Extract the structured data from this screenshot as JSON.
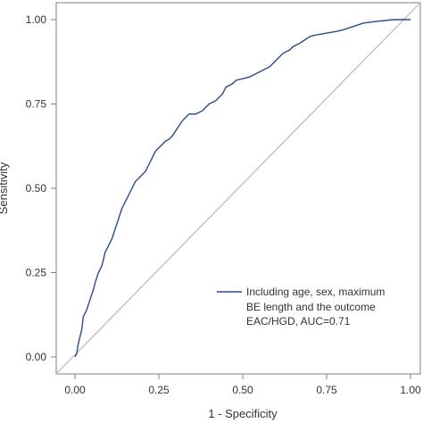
{
  "chart_data": {
    "type": "line",
    "xlabel": "1 - Specificity",
    "ylabel": "Sensitivity",
    "xlim": [
      0,
      1
    ],
    "ylim": [
      0,
      1
    ],
    "x_ticks": [
      "0.00",
      "0.25",
      "0.50",
      "0.75",
      "1.00"
    ],
    "y_ticks": [
      "0.00",
      "0.25",
      "0.50",
      "0.75",
      "1.00"
    ],
    "grid": false,
    "legend_position": "bottom-right",
    "colors": {
      "roc": "#2a4a8c",
      "reference": "#b8b8b8",
      "axis": "#7f7f7f"
    },
    "reference_line": {
      "x": [
        0,
        1
      ],
      "y": [
        0,
        1
      ]
    },
    "series": [
      {
        "name": "Including age, sex, maximum BE length and the outcome EAC/HGD, AUC=0.71",
        "legend_lines": [
          "Including age, sex, maximum",
          "BE length and the outcome",
          "EAC/HGD, AUC=0.71"
        ],
        "x": [
          0,
          0.005,
          0.01,
          0.02,
          0.025,
          0.03,
          0.035,
          0.045,
          0.055,
          0.06,
          0.07,
          0.08,
          0.085,
          0.09,
          0.1,
          0.11,
          0.12,
          0.13,
          0.14,
          0.15,
          0.16,
          0.17,
          0.18,
          0.19,
          0.2,
          0.21,
          0.22,
          0.23,
          0.24,
          0.25,
          0.26,
          0.27,
          0.28,
          0.29,
          0.3,
          0.32,
          0.34,
          0.36,
          0.37,
          0.38,
          0.39,
          0.4,
          0.42,
          0.44,
          0.45,
          0.47,
          0.48,
          0.5,
          0.52,
          0.54,
          0.55,
          0.57,
          0.58,
          0.6,
          0.62,
          0.64,
          0.65,
          0.67,
          0.7,
          0.72,
          0.75,
          0.78,
          0.8,
          0.83,
          0.86,
          0.9,
          0.95,
          1.0
        ],
        "y": [
          0,
          0.01,
          0.04,
          0.08,
          0.12,
          0.13,
          0.14,
          0.17,
          0.2,
          0.22,
          0.25,
          0.27,
          0.29,
          0.31,
          0.33,
          0.35,
          0.38,
          0.41,
          0.44,
          0.46,
          0.48,
          0.5,
          0.52,
          0.53,
          0.54,
          0.55,
          0.57,
          0.59,
          0.61,
          0.62,
          0.63,
          0.64,
          0.645,
          0.655,
          0.67,
          0.7,
          0.72,
          0.72,
          0.725,
          0.73,
          0.74,
          0.75,
          0.76,
          0.78,
          0.8,
          0.81,
          0.82,
          0.825,
          0.83,
          0.84,
          0.845,
          0.855,
          0.86,
          0.88,
          0.9,
          0.91,
          0.92,
          0.93,
          0.95,
          0.955,
          0.96,
          0.965,
          0.97,
          0.98,
          0.99,
          0.995,
          1.0,
          1.0
        ]
      }
    ]
  }
}
